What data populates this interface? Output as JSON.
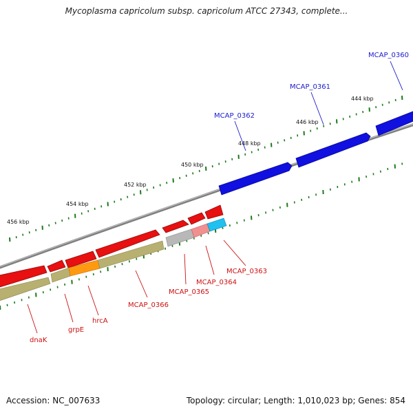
{
  "title": "Mycoplasma capricolum subsp. capricolum ATCC 27343, complete...",
  "footer": {
    "accession": "Accession: NC_007633",
    "summary": "Topology: circular; Length: 1,010,023 bp; Genes: 854"
  },
  "colors": {
    "ring": "#7f7f7f",
    "tick": "#1a7a1a",
    "forward_gene": "#1010e0",
    "forward_label": "#1a1acc",
    "reverse_gene": "#e81010",
    "reverse_label": "#cc1010",
    "feature_olive": "#b8b070",
    "feature_orange": "#ff9a10",
    "feature_grey": "#b8b8b8",
    "feature_pink": "#f09090",
    "feature_cyan": "#20c0f0"
  },
  "scale_labels": [
    "444 kbp",
    "446 kbp",
    "448 kbp",
    "450 kbp",
    "452 kbp",
    "454 kbp",
    "456 kbp"
  ],
  "genes": [
    {
      "name": "MCAP_0360",
      "strand": "forward"
    },
    {
      "name": "MCAP_0361",
      "strand": "forward"
    },
    {
      "name": "MCAP_0362",
      "strand": "forward"
    },
    {
      "name": "MCAP_0363",
      "strand": "reverse"
    },
    {
      "name": "MCAP_0364",
      "strand": "reverse"
    },
    {
      "name": "MCAP_0365",
      "strand": "reverse"
    },
    {
      "name": "MCAP_0366",
      "strand": "reverse"
    },
    {
      "name": "hrcA",
      "strand": "reverse"
    },
    {
      "name": "grpE",
      "strand": "reverse"
    },
    {
      "name": "dnaK",
      "strand": "reverse"
    }
  ]
}
